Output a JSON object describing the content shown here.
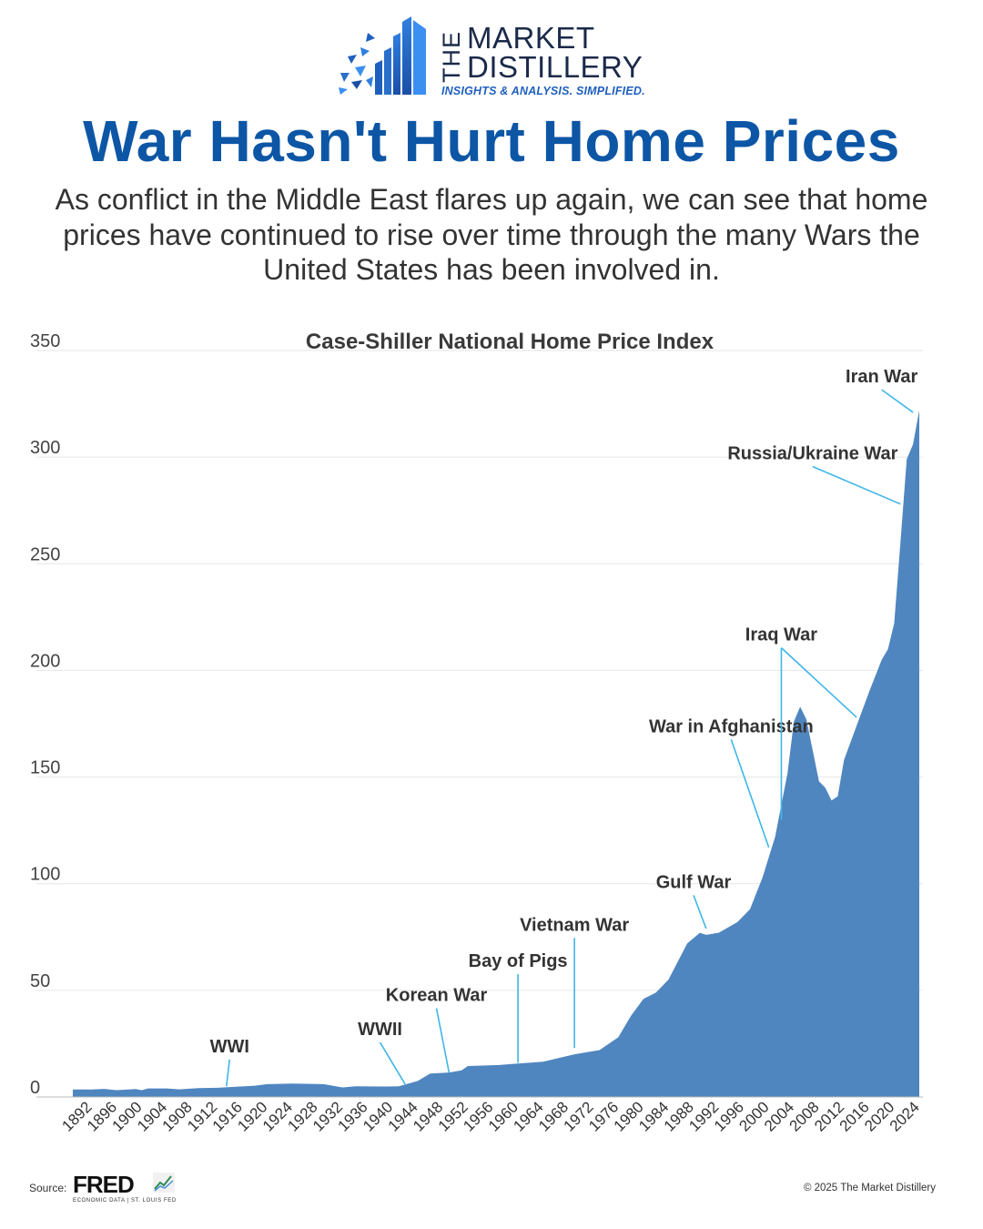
{
  "brand": {
    "word_the": "THE",
    "word_market": "MARKET",
    "word_distillery": "DISTILLERY",
    "tagline": "INSIGHTS & ANALYSIS. SIMPLIFIED."
  },
  "headline": "War Hasn't Hurt Home Prices",
  "subtitle": "As conflict in the Middle East flares up again, we can see that home prices have continued to rise over time through the many Wars the United States has been involved in.",
  "footer": {
    "source_label": "Source:",
    "fred_word": "FRED",
    "fred_sub": "ECONOMIC DATA  |  ST. LOUIS FED",
    "copyright": "© 2025 The Market Distillery"
  },
  "colors": {
    "area": "#4f86c0",
    "headline": "#0d56a6",
    "annotation_line": "#3fb6e8",
    "grid": "#e6e6e6"
  },
  "chart_data": {
    "type": "area",
    "title": "Case-Shiller National Home Price Index",
    "ylim": [
      0,
      350
    ],
    "yticks": [
      0,
      50,
      100,
      150,
      200,
      250,
      300,
      350
    ],
    "xlim": [
      1890,
      2025
    ],
    "xticks": [
      1892,
      1896,
      1900,
      1904,
      1908,
      1912,
      1916,
      1920,
      1924,
      1928,
      1932,
      1936,
      1940,
      1944,
      1948,
      1952,
      1956,
      1960,
      1964,
      1968,
      1972,
      1976,
      1980,
      1984,
      1988,
      1992,
      1996,
      2000,
      2004,
      2008,
      2012,
      2016,
      2020,
      2024
    ],
    "grid": true,
    "x": [
      1890,
      1893,
      1895,
      1897,
      1900,
      1901,
      1902,
      1905,
      1907,
      1910,
      1913,
      1916,
      1919,
      1921,
      1925,
      1930,
      1933,
      1935,
      1940,
      1942,
      1945,
      1947,
      1950,
      1952,
      1953,
      1958,
      1960,
      1965,
      1970,
      1972,
      1974,
      1977,
      1979,
      1981,
      1983,
      1985,
      1988,
      1990,
      1991,
      1993,
      1996,
      1998,
      2000,
      2002,
      2004,
      2005,
      2006,
      2007,
      2009,
      2010,
      2011,
      2012,
      2013,
      2015,
      2017,
      2019,
      2020,
      2021,
      2022,
      2023,
      2024,
      2025
    ],
    "values": [
      3.5,
      3.5,
      3.8,
      3.2,
      3.7,
      3.2,
      4.0,
      4.0,
      3.6,
      4.2,
      4.3,
      4.8,
      5.3,
      6.0,
      6.3,
      6.0,
      4.5,
      5.0,
      4.9,
      5.0,
      7.5,
      11.0,
      11.5,
      12.5,
      14.5,
      15.0,
      15.5,
      16.5,
      20.0,
      21.0,
      22.0,
      28.0,
      38.0,
      46.0,
      49.0,
      55.0,
      72.0,
      77.0,
      76.0,
      77.0,
      82.0,
      88.0,
      103.0,
      122.0,
      152.0,
      176.0,
      183.0,
      177.0,
      148.0,
      145.0,
      139.0,
      141.0,
      158.0,
      174.0,
      190.0,
      205.0,
      210.0,
      222.0,
      260.0,
      299.0,
      306.0,
      322.0
    ],
    "annotations": [
      {
        "label": "WWI",
        "lx": 1915,
        "ly": 21,
        "tx": 1914.5,
        "ty": 5
      },
      {
        "label": "WWII",
        "lx": 1939,
        "ly": 29,
        "tx": 1943,
        "ty": 6
      },
      {
        "label": "Korean War",
        "lx": 1948,
        "ly": 45,
        "tx": 1950,
        "ty": 11.5
      },
      {
        "label": "Bay of Pigs",
        "lx": 1961,
        "ly": 61,
        "tx": 1961,
        "ty": 16
      },
      {
        "label": "Vietnam War",
        "lx": 1970,
        "ly": 78,
        "tx": 1970,
        "ty": 23
      },
      {
        "label": "Gulf War",
        "lx": 1989,
        "ly": 98,
        "tx": 1991,
        "ty": 79
      },
      {
        "label": "War in Afghanistan",
        "lx": 1995,
        "ly": 171,
        "tx": 2001,
        "ty": 117
      },
      {
        "label": "Iraq War",
        "lx": 2003,
        "ly": 214,
        "tx": 2003,
        "ty": 130
      },
      {
        "label": "Iraq War",
        "lx": 2003,
        "ly": 214,
        "tx": 2015,
        "ty": 178,
        "hide_label": true
      },
      {
        "label": "Russia/Ukraine War",
        "lx": 2008,
        "ly": 299,
        "tx": 2022,
        "ty": 278
      },
      {
        "label": "Iran War",
        "lx": 2019,
        "ly": 335,
        "tx": 2024,
        "ty": 321
      }
    ]
  }
}
